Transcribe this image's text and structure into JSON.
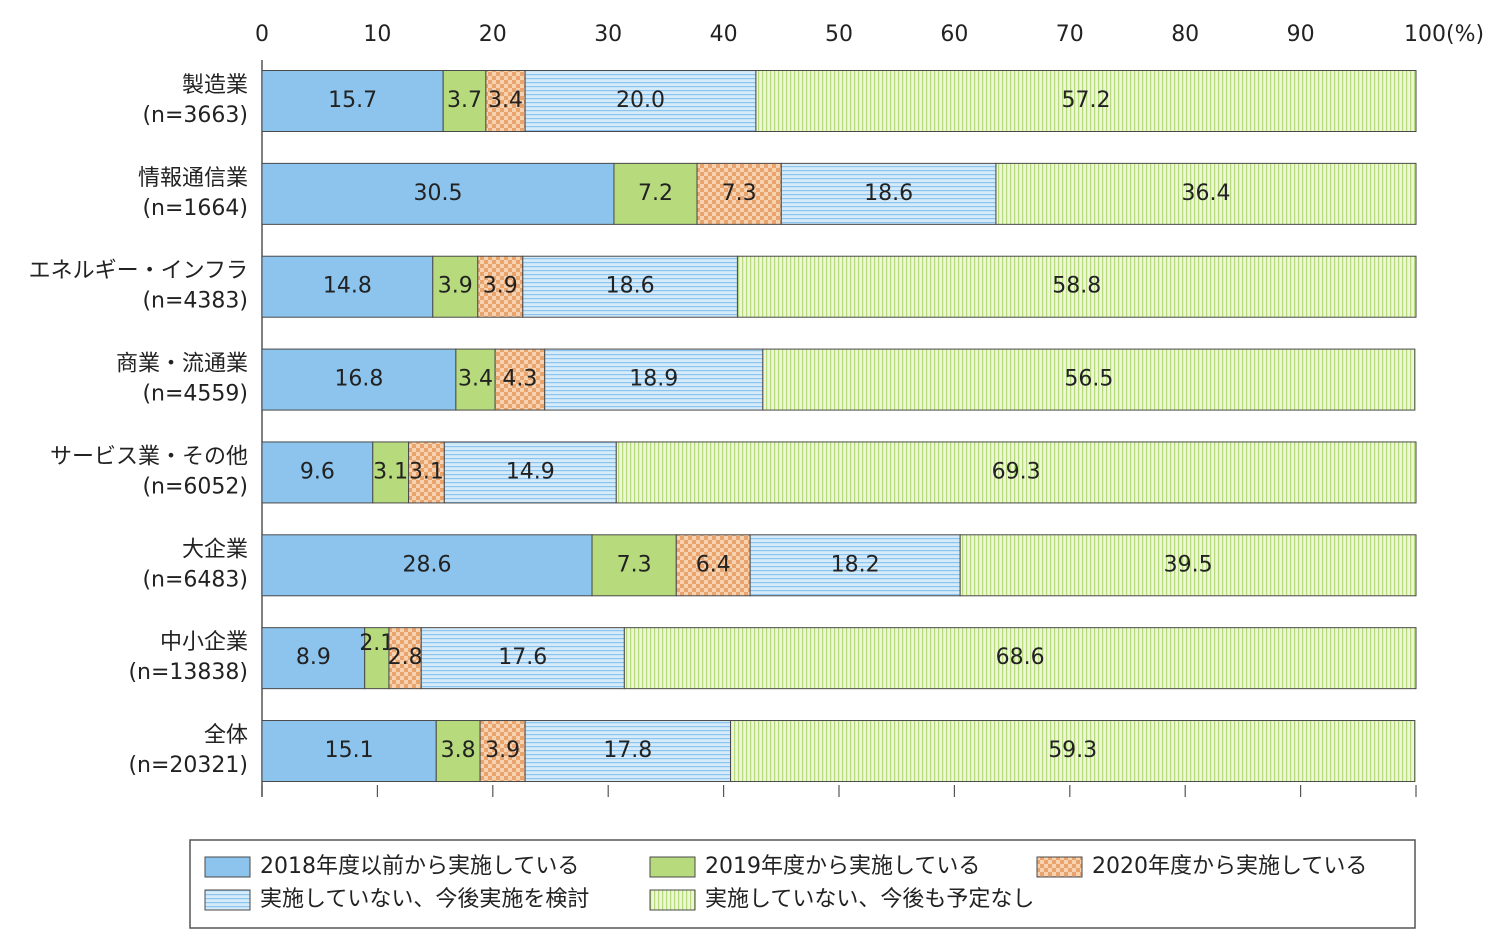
{
  "chart_data": {
    "type": "stacked-bar-horizontal",
    "categories": [
      [
        "製造業",
        "(n=3663)"
      ],
      [
        "情報通信業",
        "(n=1664)"
      ],
      [
        "エネルギー・インフラ",
        "(n=4383)"
      ],
      [
        "商業・流通業",
        "(n=4559)"
      ],
      [
        "サービス業・その他",
        "(n=6052)"
      ],
      [
        "大企業",
        "(n=6483)"
      ],
      [
        "中小企業",
        "(n=13838)"
      ],
      [
        "全体",
        "(n=20321)"
      ]
    ],
    "series": [
      {
        "name": "2018年度以前から実施している",
        "color": "#8cc4ee",
        "pattern": "solid",
        "values": [
          15.7,
          30.5,
          14.8,
          16.8,
          9.6,
          28.6,
          8.9,
          15.1
        ],
        "value_labels": [
          "15.7",
          "30.5",
          "14.8",
          "16.8",
          "9.6",
          "28.6",
          "8.9",
          "15.1"
        ]
      },
      {
        "name": "2019年度から実施している",
        "color": "#b6da7c",
        "pattern": "solid",
        "values": [
          3.7,
          7.2,
          3.9,
          3.4,
          3.1,
          7.3,
          2.1,
          3.8
        ],
        "value_labels": [
          "3.7",
          "7.2",
          "3.9",
          "3.4",
          "3.1",
          "7.3",
          "2.1",
          "3.8"
        ]
      },
      {
        "name": "2020年度から実施している",
        "color": "#f3c39a",
        "pattern": "checker",
        "values": [
          3.4,
          7.3,
          3.9,
          4.3,
          3.1,
          6.4,
          2.8,
          3.9
        ],
        "value_labels": [
          "3.4",
          "7.3",
          "3.9",
          "4.3",
          "3.1",
          "6.4",
          "2.8",
          "3.9"
        ]
      },
      {
        "name": "実施していない、今後実施を検討",
        "color": "#cfe7f8",
        "pattern": "hlines",
        "values": [
          20.0,
          18.6,
          18.6,
          18.9,
          14.9,
          18.2,
          17.6,
          17.8
        ],
        "value_labels": [
          "20.0",
          "18.6",
          "18.6",
          "18.9",
          "14.9",
          "18.2",
          "17.6",
          "17.8"
        ]
      },
      {
        "name": "実施していない、今後も予定なし",
        "color": "#e4f1c4",
        "pattern": "vlines",
        "values": [
          57.2,
          36.4,
          58.8,
          56.5,
          69.3,
          39.5,
          68.6,
          59.3
        ],
        "value_labels": [
          "57.2",
          "36.4",
          "58.8",
          "56.5",
          "69.3",
          "39.5",
          "68.6",
          "59.3"
        ]
      }
    ],
    "xlim": [
      0,
      100
    ],
    "xticks": [
      0,
      10,
      20,
      30,
      40,
      50,
      60,
      70,
      80,
      90,
      {
        "value": 100,
        "label": "100(%)"
      }
    ]
  }
}
